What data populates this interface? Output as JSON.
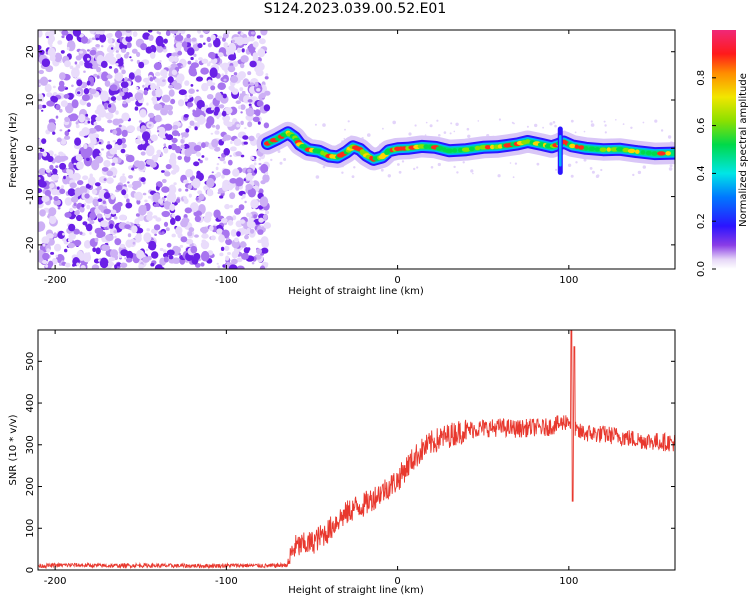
{
  "title": "S124.2023.039.00.52.E01",
  "chart_data": [
    {
      "type": "heatmap",
      "title": "",
      "xlabel": "Height of straight line (km)",
      "ylabel": "Frequency (Hz)",
      "xlim": [
        -210,
        162
      ],
      "ylim": [
        -25,
        24.5
      ],
      "xticks": [
        -200,
        -100,
        0,
        100
      ],
      "yticks": [
        -20,
        -10,
        0,
        10,
        20
      ],
      "colorbar": {
        "label": "Normalized spectral amplitude",
        "range": [
          0,
          1
        ],
        "ticks": [
          "0.0",
          "0.2",
          "0.4",
          "0.6",
          "0.8"
        ]
      },
      "noise_region_x": [
        -210,
        -76
      ],
      "ridge": {
        "x": [
          -76,
          -70,
          -64,
          -60,
          -57,
          -52,
          -46,
          -40,
          -35,
          -30,
          -26,
          -22,
          -18,
          -14,
          -9,
          -5,
          0,
          6,
          14,
          22,
          30,
          40,
          50,
          58,
          64,
          70,
          76,
          84,
          90,
          94,
          97,
          102,
          110,
          120,
          130,
          140,
          150,
          162
        ],
        "y": [
          1.0,
          2.0,
          3.2,
          2.2,
          0.8,
          -0.3,
          -0.6,
          -1.6,
          -1.8,
          -0.8,
          0.3,
          -0.2,
          -1.5,
          -2.3,
          -1.8,
          -0.5,
          -0.1,
          0.0,
          0.4,
          0.2,
          -0.5,
          -0.3,
          0.2,
          0.3,
          0.6,
          0.9,
          1.4,
          0.8,
          0.3,
          0.8,
          1.3,
          0.5,
          0.0,
          -0.3,
          -0.2,
          -0.7,
          -1.1,
          -1.0
        ]
      }
    },
    {
      "type": "line",
      "title": "",
      "xlabel": "Height of straight line (km)",
      "ylabel": "SNR (10 * v/v)",
      "xlim": [
        -210,
        162
      ],
      "ylim": [
        0,
        575
      ],
      "xticks": [
        -200,
        -100,
        0,
        100
      ],
      "yticks": [
        0,
        100,
        200,
        300,
        400,
        500
      ],
      "series": [
        {
          "name": "SNR",
          "color": "#e8382e",
          "x": [
            -210,
            -190,
            -170,
            -150,
            -130,
            -110,
            -90,
            -75,
            -64,
            -62,
            -60,
            -55,
            -50,
            -45,
            -40,
            -35,
            -30,
            -25,
            -20,
            -15,
            -10,
            -5,
            0,
            5,
            10,
            15,
            20,
            25,
            30,
            35,
            40,
            45,
            50,
            55,
            60,
            65,
            70,
            75,
            80,
            85,
            90,
            95,
            100,
            102,
            105,
            110,
            120,
            130,
            140,
            150,
            162
          ],
          "y": [
            10,
            12,
            10,
            11,
            10,
            10,
            11,
            10,
            12,
            40,
            55,
            60,
            65,
            80,
            95,
            120,
            135,
            150,
            155,
            170,
            185,
            200,
            215,
            245,
            270,
            290,
            305,
            315,
            322,
            330,
            335,
            338,
            340,
            340,
            342,
            340,
            338,
            340,
            342,
            340,
            345,
            350,
            360,
            340,
            330,
            328,
            325,
            320,
            312,
            308,
            305
          ]
        }
      ]
    }
  ]
}
